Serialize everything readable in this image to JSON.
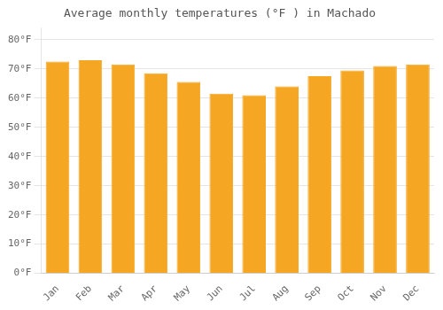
{
  "chart_data": {
    "type": "bar",
    "title": "Average monthly temperatures (°F ) in Machado",
    "categories": [
      "Jan",
      "Feb",
      "Mar",
      "Apr",
      "May",
      "Jun",
      "Jul",
      "Aug",
      "Sep",
      "Oct",
      "Nov",
      "Dec"
    ],
    "values": [
      72.5,
      73.0,
      71.5,
      68.5,
      65.5,
      61.5,
      61.0,
      64.0,
      67.5,
      69.5,
      71.0,
      71.5
    ],
    "color": "#F5A623",
    "ylim": [
      0,
      84
    ],
    "yticks": [
      {
        "value": 0,
        "label": "0°F"
      },
      {
        "value": 10,
        "label": "10°F"
      },
      {
        "value": 20,
        "label": "20°F"
      },
      {
        "value": 30,
        "label": "30°F"
      },
      {
        "value": 40,
        "label": "40°F"
      },
      {
        "value": 50,
        "label": "50°F"
      },
      {
        "value": 60,
        "label": "60°F"
      },
      {
        "value": 70,
        "label": "70°F"
      },
      {
        "value": 80,
        "label": "80°F"
      }
    ],
    "grid": true
  }
}
